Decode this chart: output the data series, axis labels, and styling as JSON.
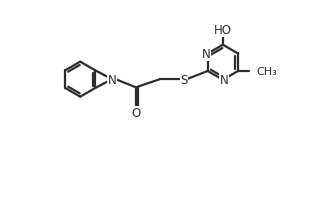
{
  "bg_color": "#ffffff",
  "bond_color": "#2d2d2d",
  "atom_color": "#2d2d2d",
  "line_width": 1.6,
  "font_size": 8.5,
  "fig_width": 3.18,
  "fig_height": 2.07,
  "dpi": 100,
  "xlim": [
    -0.5,
    9.5
  ],
  "ylim": [
    -0.5,
    6.5
  ]
}
